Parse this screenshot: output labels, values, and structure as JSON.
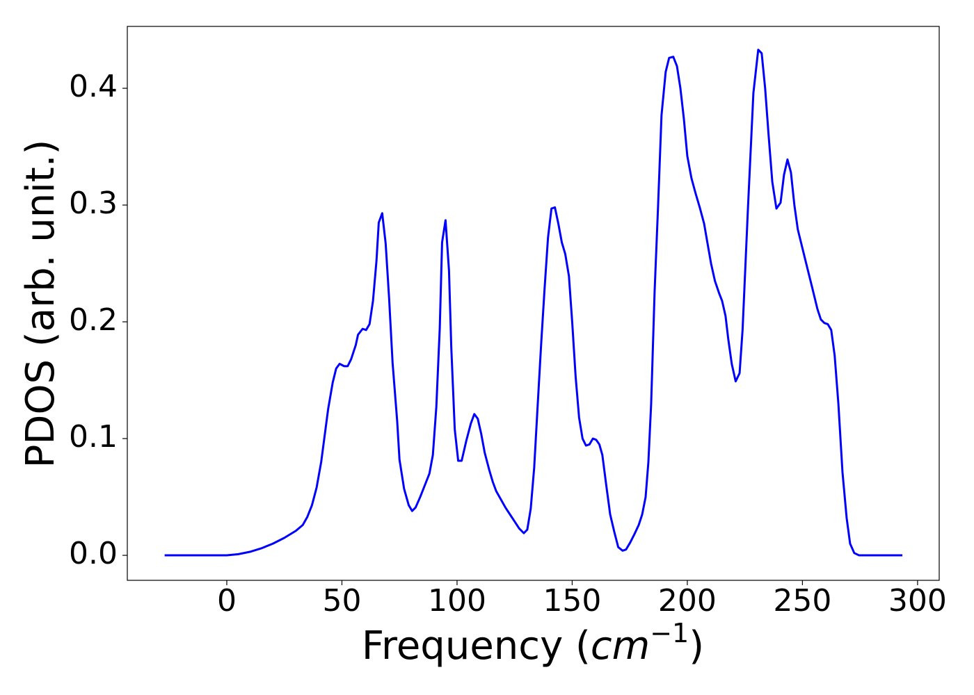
{
  "chart_data": {
    "type": "line",
    "ylabel": "PDOS (arb. unit.)",
    "xlabel": [
      "Frequency (",
      "cm",
      "−1",
      ")"
    ],
    "color": "#0000ff",
    "xlim": [
      -43.2,
      309.4
    ],
    "ylim": [
      -0.0214,
      0.453
    ],
    "xticks": [
      0,
      50,
      100,
      150,
      200,
      250,
      300
    ],
    "yticks": [
      {
        "value": 0,
        "label": "0.0"
      },
      0.1,
      0.2,
      0.3,
      0.4
    ],
    "grid": false,
    "x": [
      -27,
      0,
      5,
      10,
      15,
      20,
      25,
      30,
      33,
      35,
      37,
      39,
      41,
      43,
      44,
      46,
      47.5,
      49,
      51,
      52.5,
      54,
      56,
      57,
      59,
      60.5,
      62,
      63.5,
      65,
      66,
      67.5,
      69,
      70.5,
      72,
      74,
      75,
      77,
      79,
      80.5,
      82,
      84,
      86,
      88,
      89.5,
      91,
      92.5,
      93.5,
      95,
      96.5,
      97.5,
      99,
      100.5,
      102,
      104,
      106,
      107.5,
      109,
      110.5,
      112,
      114,
      115.5,
      117,
      119,
      121,
      123,
      125,
      127,
      129,
      130.5,
      132,
      133.5,
      135,
      136.5,
      138,
      139.5,
      141,
      142.5,
      144,
      145.5,
      147,
      148.6,
      150,
      151.5,
      153,
      154.5,
      156,
      157.5,
      159,
      160.4,
      161.8,
      163.1,
      164.8,
      166.5,
      168.3,
      170,
      171.9,
      173.4,
      175.2,
      177,
      178.9,
      180.4,
      181.9,
      183.1,
      184.3,
      185.8,
      187.3,
      188.8,
      190.6,
      192.1,
      193.9,
      195.5,
      197,
      198.5,
      200,
      201.8,
      203.6,
      205.4,
      207.3,
      208.8,
      210.3,
      212,
      213.9,
      215.1,
      216.6,
      217.8,
      219.3,
      221,
      222.7,
      224,
      226.4,
      228.7,
      230.8,
      232.3,
      233.8,
      235.3,
      236.9,
      238.7,
      240.5,
      242,
      243.5,
      245,
      246.5,
      248,
      251,
      254.4,
      256.5,
      258,
      259.5,
      261,
      262.5,
      264,
      265.6,
      267.4,
      269.2,
      270.7,
      272.5,
      274.6,
      293.4
    ],
    "values": [
      0,
      0,
      0.001,
      0.003,
      0.006,
      0.01,
      0.015,
      0.021,
      0.026,
      0.033,
      0.043,
      0.058,
      0.08,
      0.11,
      0.125,
      0.148,
      0.16,
      0.164,
      0.162,
      0.162,
      0.168,
      0.18,
      0.189,
      0.194,
      0.193,
      0.198,
      0.218,
      0.252,
      0.285,
      0.293,
      0.267,
      0.22,
      0.165,
      0.115,
      0.082,
      0.057,
      0.043,
      0.038,
      0.041,
      0.05,
      0.06,
      0.07,
      0.086,
      0.127,
      0.195,
      0.268,
      0.287,
      0.244,
      0.178,
      0.108,
      0.081,
      0.081,
      0.098,
      0.113,
      0.121,
      0.117,
      0.104,
      0.088,
      0.073,
      0.063,
      0.055,
      0.048,
      0.041,
      0.035,
      0.029,
      0.023,
      0.019,
      0.022,
      0.04,
      0.075,
      0.128,
      0.18,
      0.228,
      0.272,
      0.297,
      0.298,
      0.284,
      0.268,
      0.258,
      0.239,
      0.2,
      0.153,
      0.118,
      0.1,
      0.094,
      0.095,
      0.1,
      0.099,
      0.095,
      0.086,
      0.06,
      0.035,
      0.02,
      0.007,
      0.004,
      0.005,
      0.011,
      0.018,
      0.026,
      0.035,
      0.05,
      0.08,
      0.13,
      0.226,
      0.299,
      0.377,
      0.414,
      0.426,
      0.427,
      0.419,
      0.4,
      0.374,
      0.342,
      0.323,
      0.31,
      0.298,
      0.284,
      0.267,
      0.25,
      0.235,
      0.224,
      0.218,
      0.205,
      0.185,
      0.164,
      0.149,
      0.156,
      0.193,
      0.3,
      0.396,
      0.433,
      0.43,
      0.4,
      0.36,
      0.32,
      0.297,
      0.302,
      0.326,
      0.339,
      0.328,
      0.3,
      0.279,
      0.255,
      0.228,
      0.211,
      0.202,
      0.199,
      0.198,
      0.193,
      0.171,
      0.13,
      0.071,
      0.032,
      0.01,
      0.002,
      0,
      0
    ]
  }
}
